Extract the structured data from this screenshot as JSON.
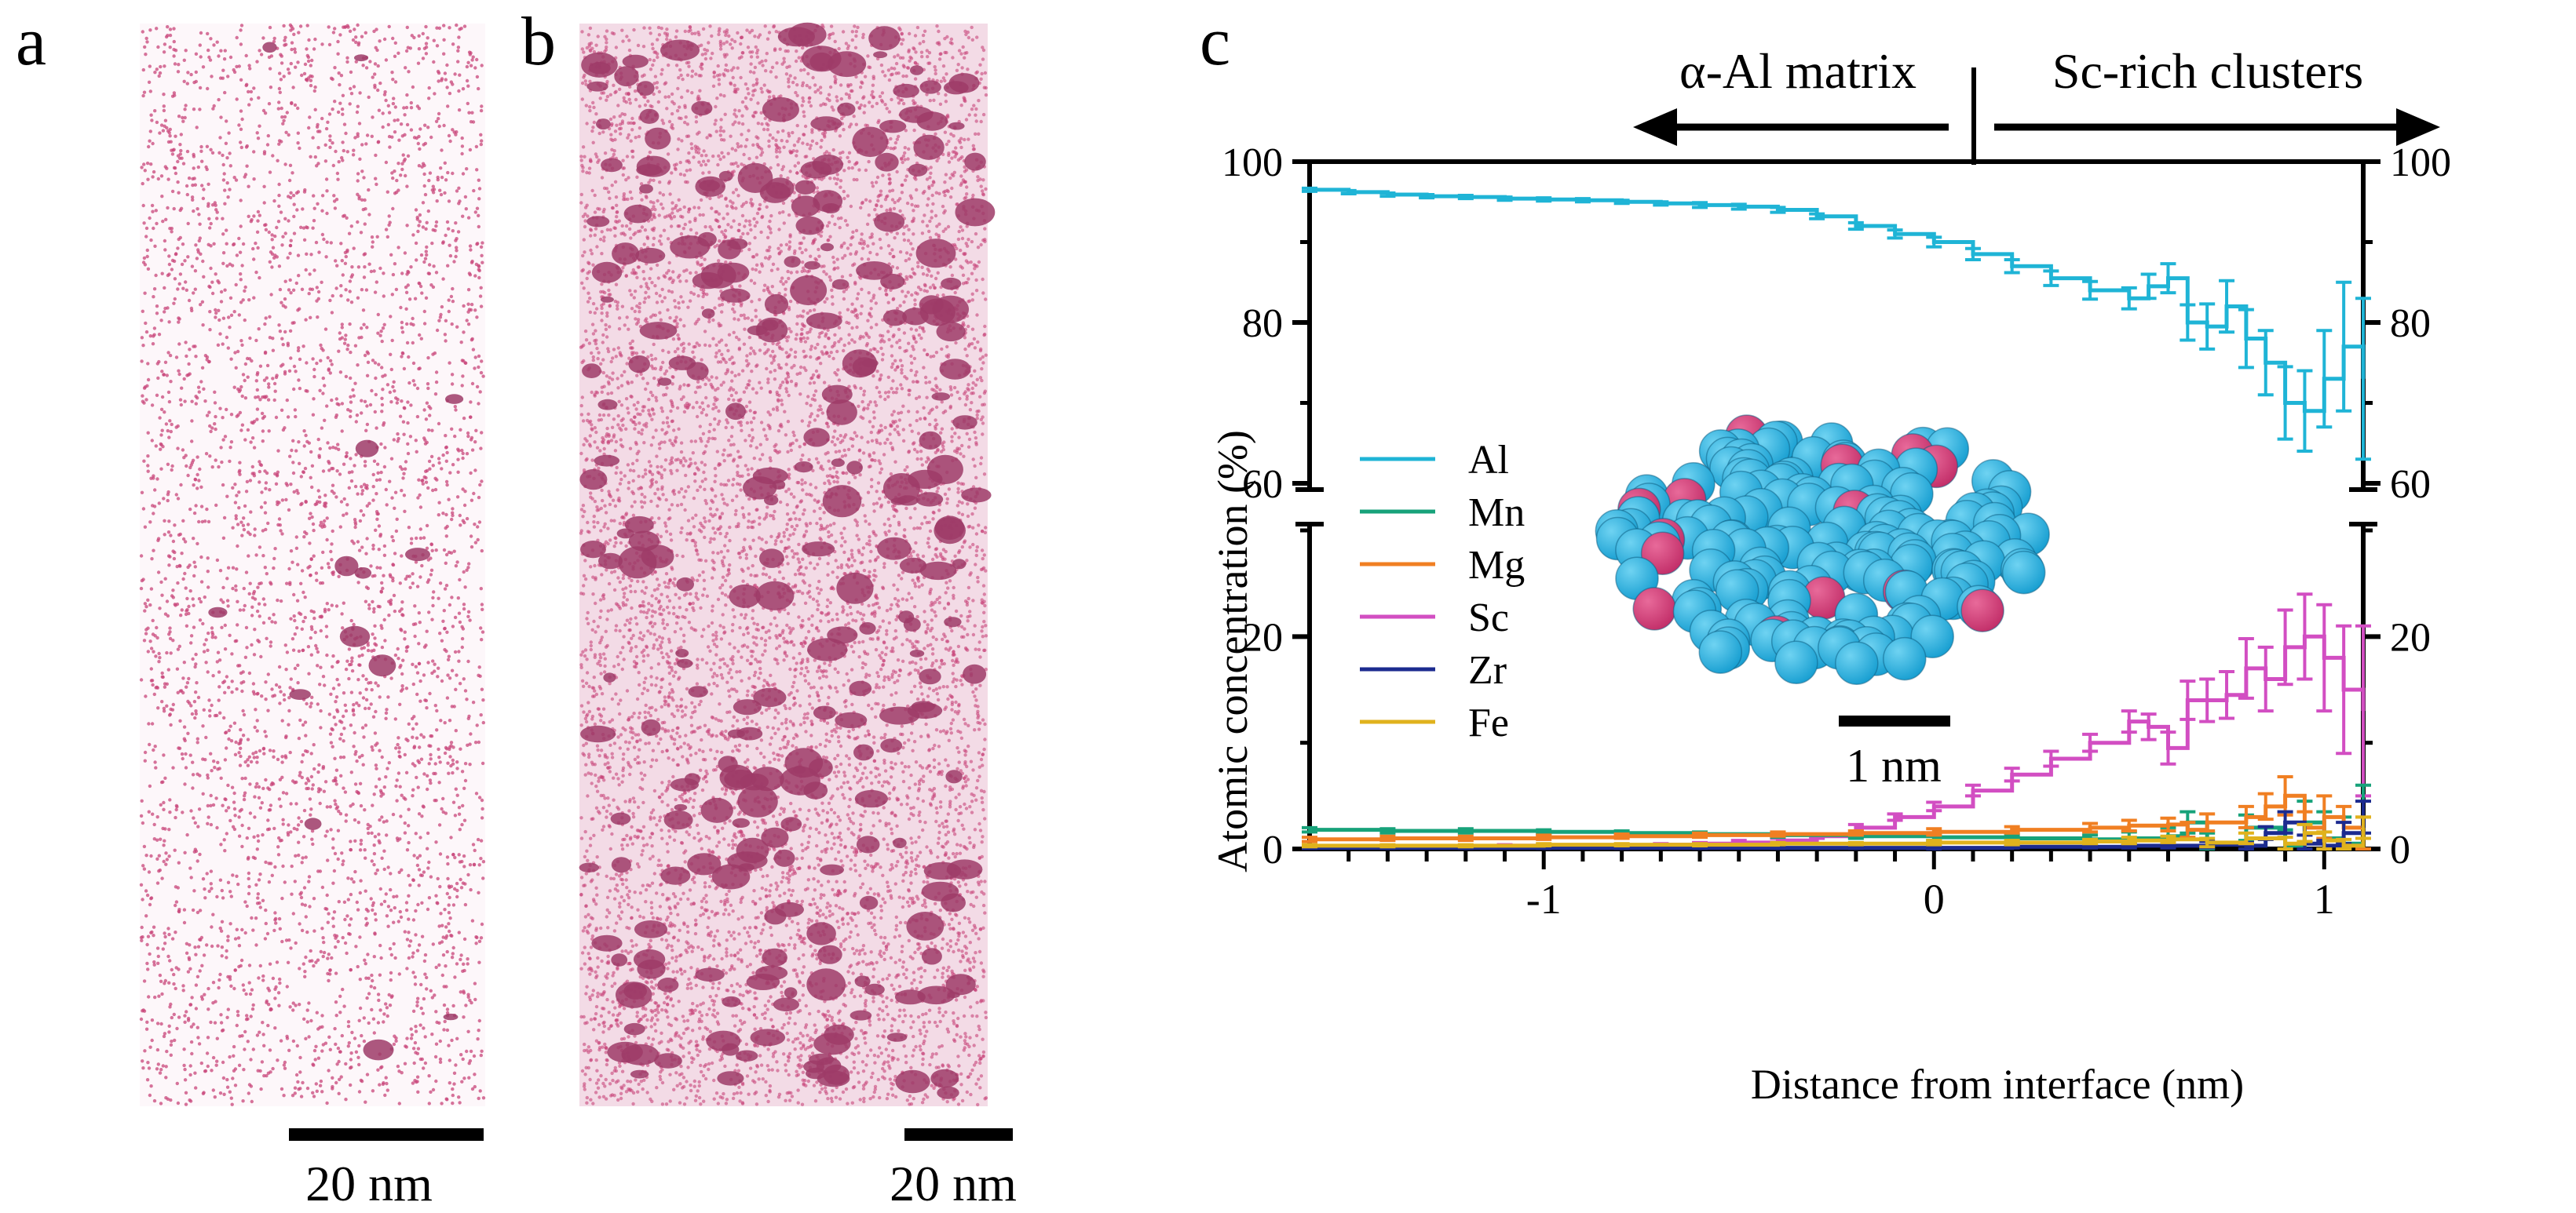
{
  "panels": {
    "a": {
      "letter": "a",
      "scale_bar": "20 nm"
    },
    "b": {
      "letter": "b",
      "scale_bar": "20 nm"
    },
    "c": {
      "letter": "c",
      "inset_scale_bar": "1 nm"
    }
  },
  "colors": {
    "Al": "#1fb4d6",
    "Mn": "#17a27a",
    "Mg": "#f07f22",
    "Sc": "#d24ec2",
    "Zr": "#1c2b8f",
    "Fe": "#e0b21d",
    "atom_point": "#c8457a",
    "cluster": "#9e3b67",
    "inset_al": "#1aa0d2",
    "inset_sc": "#c3306a"
  },
  "chart_data": {
    "type": "line",
    "title": "",
    "xlabel": "Distance from interface (nm)",
    "ylabel": "Atomic concentration (%)",
    "xlim": [
      -1.6,
      1.1
    ],
    "ylim_top": [
      60,
      100
    ],
    "ylim_bottom": [
      0,
      30
    ],
    "xticks": [
      -1,
      0,
      1
    ],
    "xtick_labels": [
      "-1",
      "0",
      "1"
    ],
    "yticks_top": [
      60,
      80,
      100
    ],
    "yticks_top_labels": [
      "60",
      "80",
      "100"
    ],
    "yticks_bottom": [
      0,
      20
    ],
    "yticks_bottom_labels": [
      "0",
      "20"
    ],
    "annotations": {
      "left": "α-Al matrix",
      "right": "Sc-rich clusters"
    },
    "legend": [
      "Al",
      "Mn",
      "Mg",
      "Sc",
      "Zr",
      "Fe"
    ],
    "series": [
      {
        "name": "Al",
        "x": [
          -1.6,
          -1.5,
          -1.4,
          -1.3,
          -1.2,
          -1.1,
          -1.0,
          -0.9,
          -0.8,
          -0.7,
          -0.6,
          -0.5,
          -0.4,
          -0.3,
          -0.2,
          -0.1,
          0.0,
          0.1,
          0.2,
          0.3,
          0.4,
          0.5,
          0.55,
          0.6,
          0.65,
          0.7,
          0.75,
          0.8,
          0.85,
          0.9,
          0.95,
          1.0,
          1.05,
          1.1
        ],
        "y": [
          96.5,
          96.2,
          95.9,
          95.7,
          95.6,
          95.4,
          95.3,
          95.2,
          95.0,
          94.8,
          94.6,
          94.4,
          94.0,
          93.2,
          92.0,
          91.0,
          90.0,
          88.5,
          87.0,
          85.5,
          84.0,
          83.0,
          84.5,
          85.5,
          80.0,
          79.5,
          82.0,
          78.0,
          75.0,
          70.0,
          69.0,
          73.0,
          77.0,
          73.0
        ],
        "err": [
          0.2,
          0.2,
          0.2,
          0.2,
          0.2,
          0.2,
          0.2,
          0.2,
          0.2,
          0.2,
          0.3,
          0.3,
          0.3,
          0.3,
          0.4,
          0.5,
          0.6,
          0.7,
          0.8,
          0.9,
          1.1,
          1.3,
          1.5,
          1.8,
          2.2,
          2.8,
          3.2,
          3.6,
          4.0,
          4.5,
          5.0,
          6.0,
          8.0,
          10.0
        ]
      },
      {
        "name": "Sc",
        "x": [
          -1.6,
          -1.5,
          -1.4,
          -1.3,
          -1.2,
          -1.1,
          -1.0,
          -0.9,
          -0.8,
          -0.7,
          -0.6,
          -0.5,
          -0.4,
          -0.3,
          -0.2,
          -0.1,
          0.0,
          0.1,
          0.2,
          0.3,
          0.4,
          0.5,
          0.55,
          0.6,
          0.65,
          0.7,
          0.75,
          0.8,
          0.85,
          0.9,
          0.95,
          1.0,
          1.05,
          1.1
        ],
        "y": [
          0.2,
          0.2,
          0.2,
          0.2,
          0.2,
          0.3,
          0.3,
          0.3,
          0.3,
          0.4,
          0.5,
          0.6,
          0.8,
          1.2,
          2.0,
          3.0,
          4.0,
          5.5,
          7.0,
          8.5,
          10.0,
          12.0,
          11.5,
          9.5,
          14.0,
          14.0,
          14.5,
          17.0,
          16.0,
          19.0,
          20.0,
          18.0,
          15.0,
          13.0
        ],
        "err": [
          0.1,
          0.1,
          0.1,
          0.1,
          0.1,
          0.1,
          0.1,
          0.1,
          0.1,
          0.1,
          0.1,
          0.2,
          0.2,
          0.2,
          0.3,
          0.3,
          0.4,
          0.5,
          0.6,
          0.7,
          0.8,
          1.0,
          1.2,
          1.5,
          1.8,
          2.0,
          2.2,
          2.8,
          3.0,
          3.5,
          4.0,
          5.0,
          6.0,
          8.0
        ]
      },
      {
        "name": "Mn",
        "x": [
          -1.6,
          -1.4,
          -1.2,
          -1.0,
          -0.8,
          -0.6,
          -0.4,
          -0.2,
          0.0,
          0.2,
          0.4,
          0.5,
          0.6,
          0.65,
          0.7,
          0.8,
          0.9,
          0.95,
          1.0,
          1.05,
          1.1
        ],
        "y": [
          1.8,
          1.7,
          1.7,
          1.6,
          1.5,
          1.4,
          1.3,
          1.2,
          1.1,
          1.0,
          0.9,
          1.0,
          1.2,
          2.5,
          0.5,
          2.0,
          0.3,
          2.5,
          1.0,
          0.5,
          3.0
        ],
        "err": [
          0.2,
          0.2,
          0.2,
          0.2,
          0.2,
          0.2,
          0.2,
          0.2,
          0.3,
          0.3,
          0.4,
          0.6,
          0.8,
          1.0,
          1.0,
          1.2,
          1.5,
          2.0,
          2.5,
          2.5,
          3.0
        ]
      },
      {
        "name": "Mg",
        "x": [
          -1.6,
          -1.4,
          -1.2,
          -1.0,
          -0.8,
          -0.6,
          -0.4,
          -0.2,
          0.0,
          0.2,
          0.4,
          0.5,
          0.6,
          0.65,
          0.7,
          0.8,
          0.85,
          0.9,
          0.95,
          1.0,
          1.05,
          1.1
        ],
        "y": [
          0.9,
          1.0,
          1.0,
          1.1,
          1.2,
          1.3,
          1.4,
          1.5,
          1.6,
          1.8,
          2.0,
          2.2,
          2.3,
          1.8,
          2.5,
          3.0,
          4.0,
          5.0,
          2.0,
          3.0,
          2.0,
          1.0
        ],
        "err": [
          0.2,
          0.2,
          0.2,
          0.2,
          0.2,
          0.2,
          0.2,
          0.2,
          0.3,
          0.3,
          0.4,
          0.5,
          0.6,
          0.7,
          0.8,
          1.0,
          1.2,
          1.8,
          1.5,
          2.0,
          2.0,
          2.0
        ]
      },
      {
        "name": "Zr",
        "x": [
          -1.6,
          -1.4,
          -1.2,
          -1.0,
          -0.8,
          -0.6,
          -0.4,
          -0.2,
          0.0,
          0.2,
          0.4,
          0.5,
          0.6,
          0.7,
          0.8,
          0.85,
          0.9,
          0.95,
          1.0,
          1.05,
          1.1
        ],
        "y": [
          0.1,
          0.1,
          0.1,
          0.1,
          0.1,
          0.1,
          0.1,
          0.1,
          0.1,
          0.2,
          0.2,
          0.3,
          0.3,
          0.4,
          0.3,
          1.5,
          2.5,
          0.5,
          0.3,
          1.5,
          3.0
        ],
        "err": [
          0.05,
          0.05,
          0.05,
          0.05,
          0.05,
          0.05,
          0.05,
          0.05,
          0.1,
          0.1,
          0.1,
          0.2,
          0.2,
          0.3,
          0.3,
          0.6,
          1.0,
          0.8,
          0.5,
          1.0,
          1.5
        ]
      },
      {
        "name": "Fe",
        "x": [
          -1.6,
          -1.4,
          -1.2,
          -1.0,
          -0.8,
          -0.6,
          -0.4,
          -0.2,
          0.0,
          0.2,
          0.4,
          0.5,
          0.6,
          0.7,
          0.8,
          0.9,
          0.95,
          1.0,
          1.05,
          1.1
        ],
        "y": [
          0.3,
          0.3,
          0.3,
          0.4,
          0.4,
          0.4,
          0.5,
          0.5,
          0.6,
          0.6,
          0.7,
          0.8,
          0.9,
          0.6,
          1.0,
          0.5,
          1.5,
          0.8,
          0.3,
          2.0
        ],
        "err": [
          0.1,
          0.1,
          0.1,
          0.1,
          0.1,
          0.1,
          0.1,
          0.1,
          0.2,
          0.2,
          0.2,
          0.3,
          0.3,
          0.4,
          0.5,
          0.6,
          0.8,
          0.8,
          0.6,
          1.0
        ]
      }
    ]
  }
}
